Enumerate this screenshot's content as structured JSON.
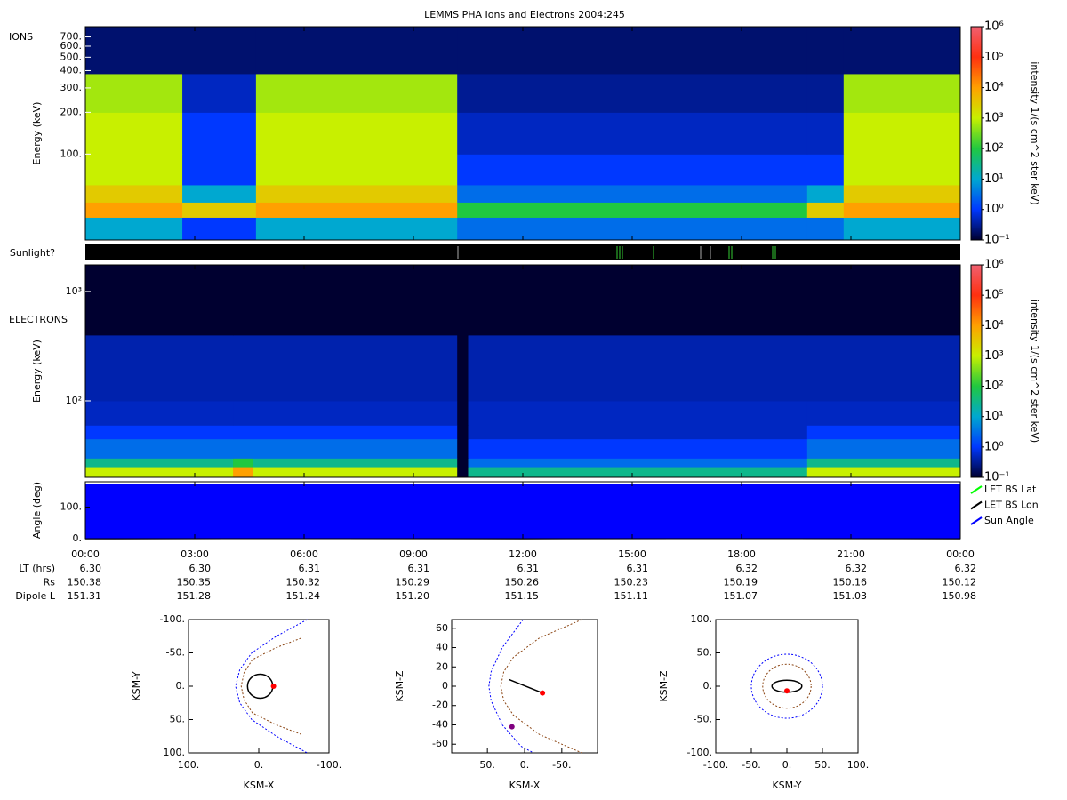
{
  "title": "LEMMS PHA Ions and Electrons  2004:245",
  "sunlight_label": "Sunlight?",
  "colormap": [
    "#000030",
    "#0038ff",
    "#00a8d0",
    "#20c840",
    "#c8f000",
    "#ffa000",
    "#ff3010",
    "#f06070"
  ],
  "time_axis": {
    "xlim": [
      0,
      24
    ],
    "xticks": [
      {
        "value": 0,
        "label": "00:00"
      },
      {
        "value": 3,
        "label": "03:00"
      },
      {
        "value": 6,
        "label": "06:00"
      },
      {
        "value": 9,
        "label": "09:00"
      },
      {
        "value": 12,
        "label": "12:00"
      },
      {
        "value": 15,
        "label": "15:00"
      },
      {
        "value": 18,
        "label": "18:00"
      },
      {
        "value": 21,
        "label": "21:00"
      },
      {
        "value": 24,
        "label": "00:00"
      }
    ]
  },
  "ephemeris": [
    {
      "name": "LT (hrs)",
      "values": [
        "6.30",
        "6.30",
        "6.31",
        "6.31",
        "6.31",
        "6.31",
        "6.32",
        "6.32",
        "6.32"
      ]
    },
    {
      "name": "Rs",
      "values": [
        "150.38",
        "150.35",
        "150.32",
        "150.29",
        "150.26",
        "150.23",
        "150.19",
        "150.16",
        "150.12"
      ]
    },
    {
      "name": "Dipole L",
      "values": [
        "151.31",
        "151.28",
        "151.24",
        "151.20",
        "151.15",
        "151.11",
        "151.07",
        "151.03",
        "150.98"
      ]
    }
  ],
  "chart_data": [
    {
      "type": "heatmap",
      "label": "IONS",
      "ylabel": "Energy (keV)",
      "log_y": true,
      "ylim": [
        24,
        830
      ],
      "yticks": [
        {
          "value": 100,
          "label": "100."
        },
        {
          "value": 200,
          "label": "200."
        },
        {
          "value": 300,
          "label": "300."
        },
        {
          "value": 400,
          "label": "400."
        },
        {
          "value": 500,
          "label": "500."
        },
        {
          "value": 600,
          "label": "600."
        },
        {
          "value": 700,
          "label": "700."
        }
      ],
      "x_bins": [
        0,
        2.66,
        4.68,
        10.2,
        19.8,
        20.8,
        24
      ],
      "y_bins": [
        24,
        35,
        45,
        60,
        100,
        200,
        380,
        830
      ],
      "z": [
        [
          10,
          1,
          10,
          3,
          3,
          10
        ],
        [
          10000,
          3000,
          10000,
          100,
          3000,
          10000
        ],
        [
          3000,
          10,
          3000,
          3,
          10,
          3000
        ],
        [
          1000,
          1,
          1000,
          1,
          1,
          1000
        ],
        [
          1000,
          1,
          1000,
          0.5,
          0.5,
          1000
        ],
        [
          600,
          0.5,
          600,
          0.3,
          0.3,
          600
        ],
        [
          0.2,
          0.2,
          0.2,
          0.2,
          0.2,
          0.2
        ]
      ],
      "colorbar": {
        "label": "intensity 1/(s cm^2 ster keV)",
        "log": true,
        "lim": [
          0.1,
          1000000
        ],
        "ticks": [
          {
            "value": 0.1,
            "label": "10⁻¹"
          },
          {
            "value": 1,
            "label": "10⁰"
          },
          {
            "value": 10,
            "label": "10¹"
          },
          {
            "value": 100,
            "label": "10²"
          },
          {
            "value": 1000,
            "label": "10³"
          },
          {
            "value": 10000,
            "label": "10⁴"
          },
          {
            "value": 100000,
            "label": "10⁵"
          },
          {
            "value": 1000000,
            "label": "10⁶"
          }
        ]
      }
    },
    {
      "type": "heatmap",
      "label": "ELECTRONS",
      "ylabel": "Energy (keV)",
      "log_y": true,
      "ylim": [
        20,
        1750
      ],
      "yticks": [
        {
          "value": 100,
          "label": "10²"
        },
        {
          "value": 1000,
          "label": "10³"
        }
      ],
      "x_bins": [
        0,
        4.05,
        4.6,
        10.2,
        10.5,
        19.8,
        24
      ],
      "y_bins": [
        20,
        25,
        30,
        45,
        60,
        100,
        400,
        1750
      ],
      "z": [
        [
          1000,
          10000,
          1000,
          0.1,
          30,
          1000
        ],
        [
          30,
          100,
          30,
          0.1,
          3,
          30
        ],
        [
          3,
          3,
          3,
          0.1,
          1,
          3
        ],
        [
          1,
          1,
          1,
          0.1,
          0.5,
          1
        ],
        [
          0.5,
          0.5,
          0.5,
          0.1,
          0.5,
          0.5
        ],
        [
          0.4,
          0.4,
          0.4,
          0.1,
          0.4,
          0.4
        ],
        [
          0.1,
          0.1,
          0.1,
          0.1,
          0.1,
          0.1
        ]
      ],
      "colorbar": {
        "label": "intensity 1/(s cm^2 ster keV)",
        "log": true,
        "lim": [
          0.1,
          1000000
        ],
        "ticks": [
          {
            "value": 0.1,
            "label": "10⁻¹"
          },
          {
            "value": 1,
            "label": "10⁰"
          },
          {
            "value": 10,
            "label": "10¹"
          },
          {
            "value": 100,
            "label": "10²"
          },
          {
            "value": 1000,
            "label": "10³"
          },
          {
            "value": 10000,
            "label": "10⁴"
          },
          {
            "value": 100000,
            "label": "10⁵"
          },
          {
            "value": 1000000,
            "label": "10⁶"
          }
        ]
      }
    },
    {
      "type": "line",
      "ylabel": "Angle (deg)",
      "ylim": [
        0,
        180
      ],
      "legend": "right",
      "yticks": [
        {
          "value": 0,
          "label": "0."
        },
        {
          "value": 100,
          "label": "100."
        }
      ],
      "x": [
        0,
        6,
        12,
        18,
        24
      ],
      "series": [
        {
          "name": "LET BS Lat",
          "color": "#00ff00",
          "values": [
            3,
            4,
            3,
            6,
            4
          ]
        },
        {
          "name": "LET BS Lon",
          "color": "#000000",
          "values": [
            0,
            1,
            0,
            1,
            0
          ]
        },
        {
          "name": "Sun Angle",
          "color": "#0000ff",
          "values": [
            170,
            170,
            170,
            170,
            170
          ],
          "fill": true
        }
      ]
    },
    {
      "type": "orbit",
      "xlabel": "KSM-X",
      "ylabel": "KSM-Y",
      "xlim": [
        100,
        -100
      ],
      "ylim": [
        100,
        -100
      ],
      "xticks": [
        {
          "value": 100,
          "label": "100."
        },
        {
          "value": 0,
          "label": "0."
        },
        {
          "value": -100,
          "label": "-100."
        }
      ],
      "yticks": [
        {
          "value": -100,
          "label": "-100."
        },
        {
          "value": -50,
          "label": "-50."
        },
        {
          "value": 0,
          "label": "0."
        },
        {
          "value": 50,
          "label": "50."
        },
        {
          "value": 100,
          "label": "100."
        }
      ],
      "curves": [
        {
          "color": "#0000ff",
          "dashed": true,
          "x": [
            -69,
            -25,
            10,
            27,
            33,
            27,
            10,
            -25,
            -69
          ],
          "y": [
            -100,
            -75,
            -50,
            -25,
            0,
            25,
            50,
            75,
            100
          ]
        },
        {
          "color": "#8b4513",
          "dashed": true,
          "x": [
            -60,
            -25,
            9,
            21,
            25,
            21,
            9,
            -25,
            -60
          ],
          "y": [
            -72,
            -58,
            -40,
            -20,
            0,
            20,
            40,
            58,
            72
          ]
        }
      ],
      "ellipses": [
        {
          "color": "#000000",
          "dashed": false,
          "cx": -2,
          "cy": 0,
          "rx": 18,
          "ry": 18
        }
      ],
      "points": [
        {
          "color": "#ff0000",
          "x": -21,
          "y": 0
        }
      ]
    },
    {
      "type": "orbit",
      "xlabel": "KSM-X",
      "ylabel": "KSM-Z",
      "xlim": [
        98,
        -98
      ],
      "ylim": [
        -69,
        69
      ],
      "xticks": [
        {
          "value": 50,
          "label": "50."
        },
        {
          "value": 0,
          "label": "0."
        },
        {
          "value": -50,
          "label": "-50."
        }
      ],
      "yticks": [
        60,
        40,
        20,
        0,
        -20,
        -40,
        -60
      ],
      "curves": [
        {
          "color": "#0000ff",
          "dashed": true,
          "x": [
            2,
            30,
            45,
            48,
            45,
            30,
            5,
            -12
          ],
          "y": [
            69,
            40,
            15,
            0,
            -15,
            -40,
            -62,
            -69
          ]
        },
        {
          "color": "#8b4513",
          "dashed": true,
          "x": [
            -77,
            -20,
            15,
            28,
            32,
            28,
            15,
            -20,
            -77
          ],
          "y": [
            69,
            50,
            30,
            15,
            0,
            -15,
            -30,
            -50,
            -69
          ]
        },
        {
          "color": "#000000",
          "dashed": false,
          "x": [
            21,
            -24
          ],
          "y": [
            7,
            -7
          ]
        }
      ],
      "ellipses": [],
      "points": [
        {
          "color": "#ff0000",
          "x": -24,
          "y": -7
        },
        {
          "color": "#800080",
          "x": 17,
          "y": -42
        }
      ]
    },
    {
      "type": "orbit",
      "xlabel": "KSM-Y",
      "ylabel": "KSM-Z",
      "xlim": [
        -100,
        100
      ],
      "ylim": [
        -100,
        100
      ],
      "xticks": [
        {
          "value": -100,
          "label": "-100."
        },
        {
          "value": -50,
          "label": "-50."
        },
        {
          "value": 0,
          "label": "0."
        },
        {
          "value": 50,
          "label": "50."
        },
        {
          "value": 100,
          "label": "100."
        }
      ],
      "yticks": [
        {
          "value": 100,
          "label": "100."
        },
        {
          "value": 50,
          "label": "50."
        },
        {
          "value": 0,
          "label": "0."
        },
        {
          "value": -50,
          "label": "-50."
        },
        {
          "value": -100,
          "label": "-100."
        }
      ],
      "curves": [],
      "ellipses": [
        {
          "color": "#0000ff",
          "dashed": true,
          "cx": 0,
          "cy": 0,
          "rx": 50,
          "ry": 48
        },
        {
          "color": "#8b4513",
          "dashed": true,
          "cx": 0,
          "cy": 0,
          "rx": 34,
          "ry": 33
        },
        {
          "color": "#000000",
          "dashed": false,
          "cx": 0,
          "cy": 0,
          "rx": 21,
          "ry": 9
        }
      ],
      "points": [
        {
          "color": "#ff0000",
          "x": 0,
          "y": -7
        }
      ]
    }
  ]
}
